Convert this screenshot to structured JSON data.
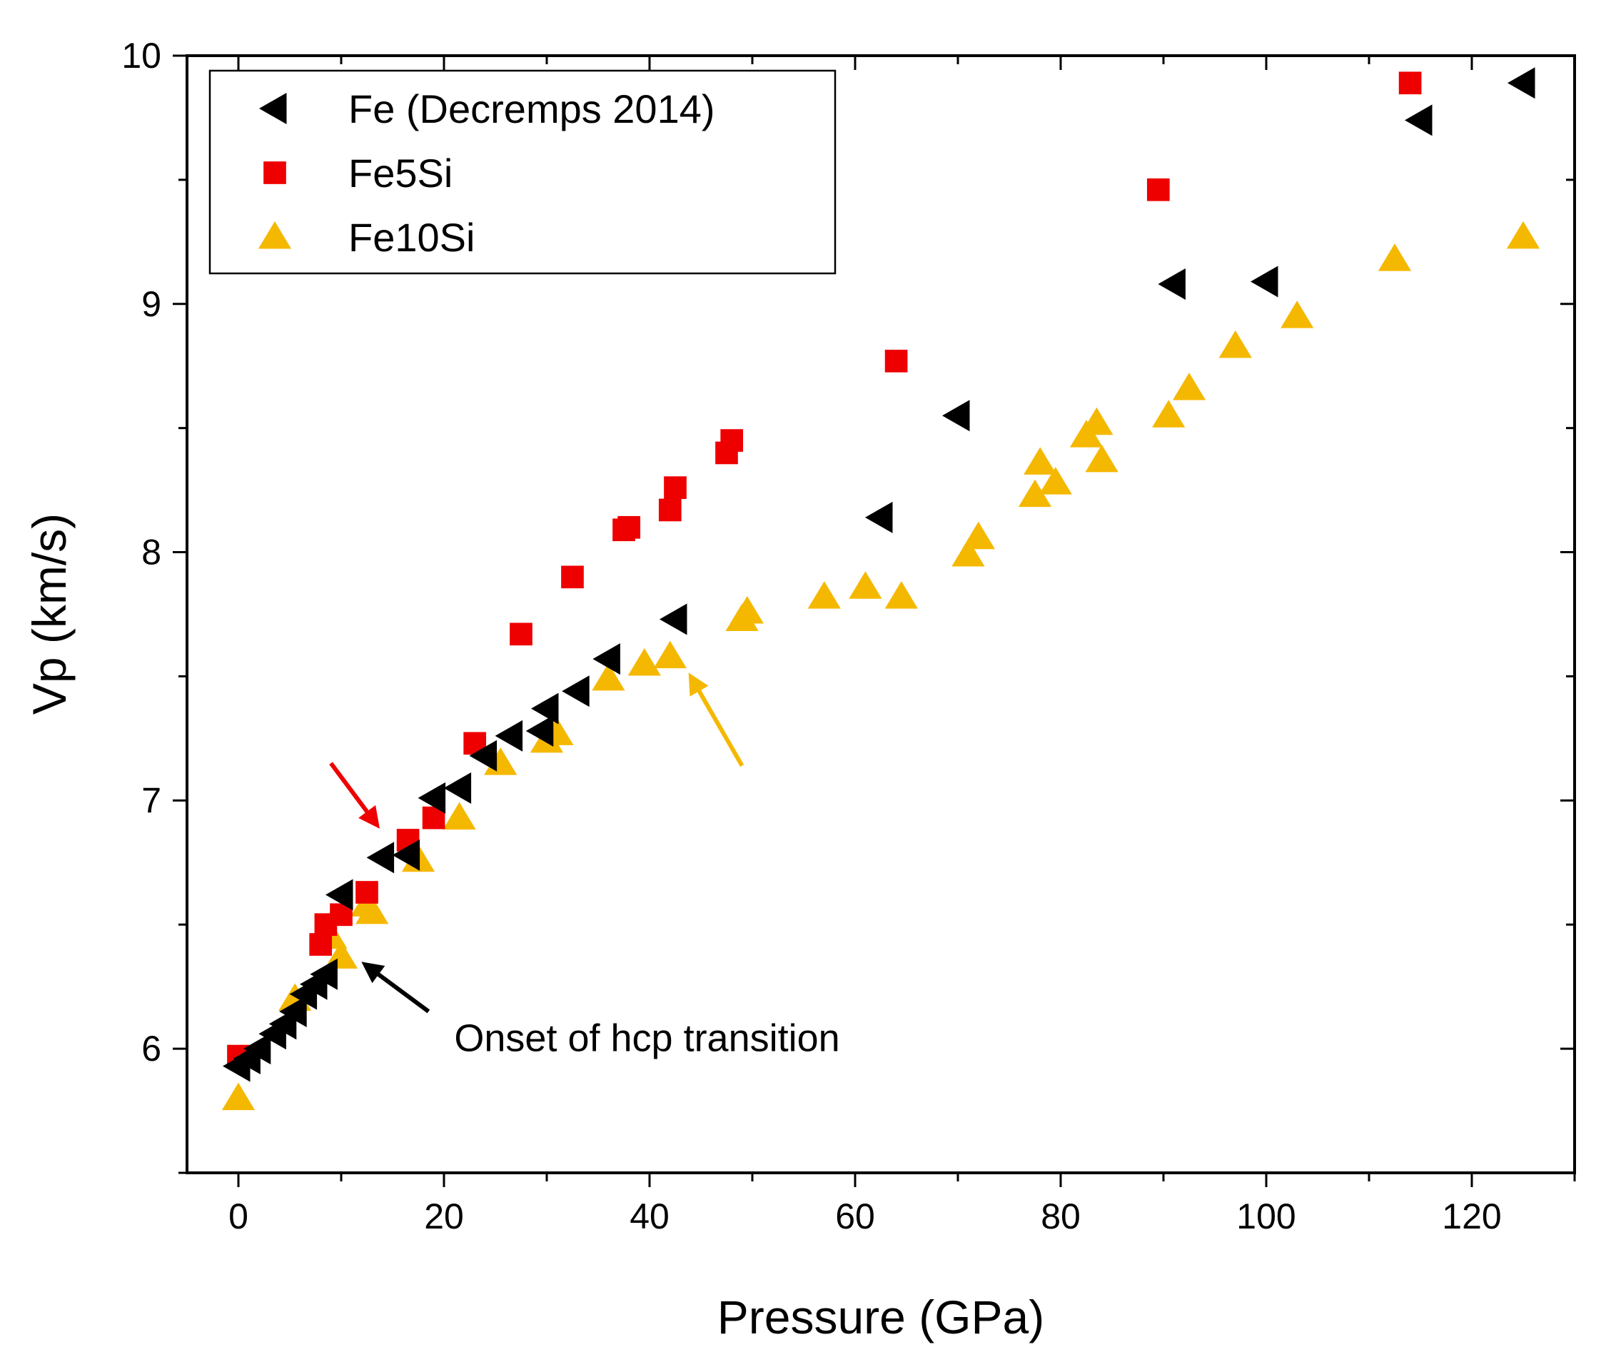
{
  "chart_data": {
    "type": "scatter",
    "title": "",
    "xlabel": "Pressure (GPa)",
    "ylabel": "Vp (km/s)",
    "xlim": [
      -5,
      130
    ],
    "ylim": [
      5.5,
      10
    ],
    "xticks": [
      0,
      20,
      40,
      60,
      80,
      100,
      120
    ],
    "yticks": [
      6,
      7,
      8,
      9,
      10
    ],
    "x_minor_step": 10,
    "y_minor_step": 0.5,
    "grid": false,
    "legend_position": "top-left",
    "series": [
      {
        "name": "Fe (Decremps 2014)",
        "marker": "left-triangle",
        "color": "#000000",
        "points": [
          [
            0,
            5.93
          ],
          [
            1,
            5.96
          ],
          [
            2,
            6.0
          ],
          [
            3.5,
            6.06
          ],
          [
            4.5,
            6.1
          ],
          [
            5.5,
            6.15
          ],
          [
            6.5,
            6.22
          ],
          [
            7.5,
            6.26
          ],
          [
            8.5,
            6.3
          ],
          [
            10,
            6.62
          ],
          [
            14,
            6.77
          ],
          [
            16.5,
            6.78
          ],
          [
            19,
            7.01
          ],
          [
            21.5,
            7.05
          ],
          [
            24,
            7.18
          ],
          [
            26.5,
            7.26
          ],
          [
            29.5,
            7.28
          ],
          [
            30,
            7.37
          ],
          [
            33,
            7.44
          ],
          [
            36,
            7.57
          ],
          [
            42.5,
            7.73
          ],
          [
            62.5,
            8.14
          ],
          [
            70,
            8.55
          ],
          [
            91,
            9.08
          ],
          [
            100,
            9.09
          ],
          [
            115,
            9.74
          ],
          [
            125,
            9.89
          ]
        ]
      },
      {
        "name": "Fe5Si",
        "marker": "square",
        "color": "#ee0000",
        "points": [
          [
            0,
            5.97
          ],
          [
            8,
            6.42
          ],
          [
            8.5,
            6.5
          ],
          [
            10,
            6.54
          ],
          [
            12.5,
            6.63
          ],
          [
            16.5,
            6.84
          ],
          [
            19,
            6.93
          ],
          [
            23,
            7.23
          ],
          [
            27.5,
            7.67
          ],
          [
            32.5,
            7.9
          ],
          [
            37.5,
            8.09
          ],
          [
            38,
            8.1
          ],
          [
            42,
            8.17
          ],
          [
            42.5,
            8.26
          ],
          [
            47.5,
            8.4
          ],
          [
            48,
            8.45
          ],
          [
            64,
            8.77
          ],
          [
            89.5,
            9.46
          ],
          [
            114,
            9.89
          ]
        ]
      },
      {
        "name": "Fe10Si",
        "marker": "triangle",
        "color": "#f5b800",
        "points": [
          [
            0,
            5.8
          ],
          [
            5.5,
            6.2
          ],
          [
            9,
            6.45
          ],
          [
            10,
            6.37
          ],
          [
            12.5,
            6.58
          ],
          [
            13,
            6.55
          ],
          [
            17.5,
            6.76
          ],
          [
            21.5,
            6.93
          ],
          [
            25.5,
            7.15
          ],
          [
            30,
            7.24
          ],
          [
            31,
            7.27
          ],
          [
            36,
            7.49
          ],
          [
            39.5,
            7.55
          ],
          [
            42,
            7.58
          ],
          [
            49,
            7.73
          ],
          [
            49.5,
            7.76
          ],
          [
            57,
            7.82
          ],
          [
            61,
            7.86
          ],
          [
            64.5,
            7.82
          ],
          [
            71,
            7.99
          ],
          [
            72,
            8.06
          ],
          [
            77.5,
            8.23
          ],
          [
            78,
            8.36
          ],
          [
            79.5,
            8.28
          ],
          [
            82.5,
            8.47
          ],
          [
            83.5,
            8.52
          ],
          [
            84,
            8.37
          ],
          [
            90.5,
            8.55
          ],
          [
            92.5,
            8.66
          ],
          [
            97,
            8.83
          ],
          [
            103,
            8.95
          ],
          [
            112.5,
            9.18
          ],
          [
            125,
            9.27
          ]
        ]
      }
    ],
    "annotations": [
      {
        "text": "Onset of hcp transition",
        "position": [
          21,
          5.99
        ]
      },
      {
        "arrow": true,
        "color": "#000000",
        "from": [
          18.5,
          6.15
        ],
        "to": [
          12.3,
          6.34
        ]
      },
      {
        "arrow": true,
        "color": "#ee0000",
        "from": [
          9,
          7.15
        ],
        "to": [
          13.5,
          6.9
        ]
      },
      {
        "arrow": true,
        "color": "#f5b800",
        "from": [
          49,
          7.14
        ],
        "to": [
          44,
          7.5
        ]
      }
    ]
  }
}
